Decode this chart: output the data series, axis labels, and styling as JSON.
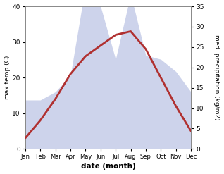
{
  "months": [
    "Jan",
    "Feb",
    "Mar",
    "Apr",
    "May",
    "Jun",
    "Jul",
    "Aug",
    "Sep",
    "Oct",
    "Nov",
    "Dec"
  ],
  "month_positions": [
    1,
    2,
    3,
    4,
    5,
    6,
    7,
    8,
    9,
    10,
    11,
    12
  ],
  "temperature": [
    3,
    8,
    14,
    21,
    26,
    29,
    32,
    33,
    28,
    20,
    12,
    5
  ],
  "precipitation": [
    12,
    12,
    14,
    18,
    40,
    35,
    22,
    38,
    23,
    22,
    19,
    14
  ],
  "temp_color": "#b03030",
  "precip_fill_color": "#c5cce8",
  "precip_alpha": 0.85,
  "ylim_left": [
    0,
    40
  ],
  "ylim_right": [
    0,
    35
  ],
  "yticks_left": [
    0,
    10,
    20,
    30,
    40
  ],
  "yticks_right": [
    0,
    5,
    10,
    15,
    20,
    25,
    30,
    35
  ],
  "xlabel": "date (month)",
  "ylabel_left": "max temp (C)",
  "ylabel_right": "med. precipitation (kg/m2)",
  "background_color": "#ffffff",
  "temp_linewidth": 2.0,
  "figsize": [
    3.18,
    2.47
  ],
  "dpi": 100
}
